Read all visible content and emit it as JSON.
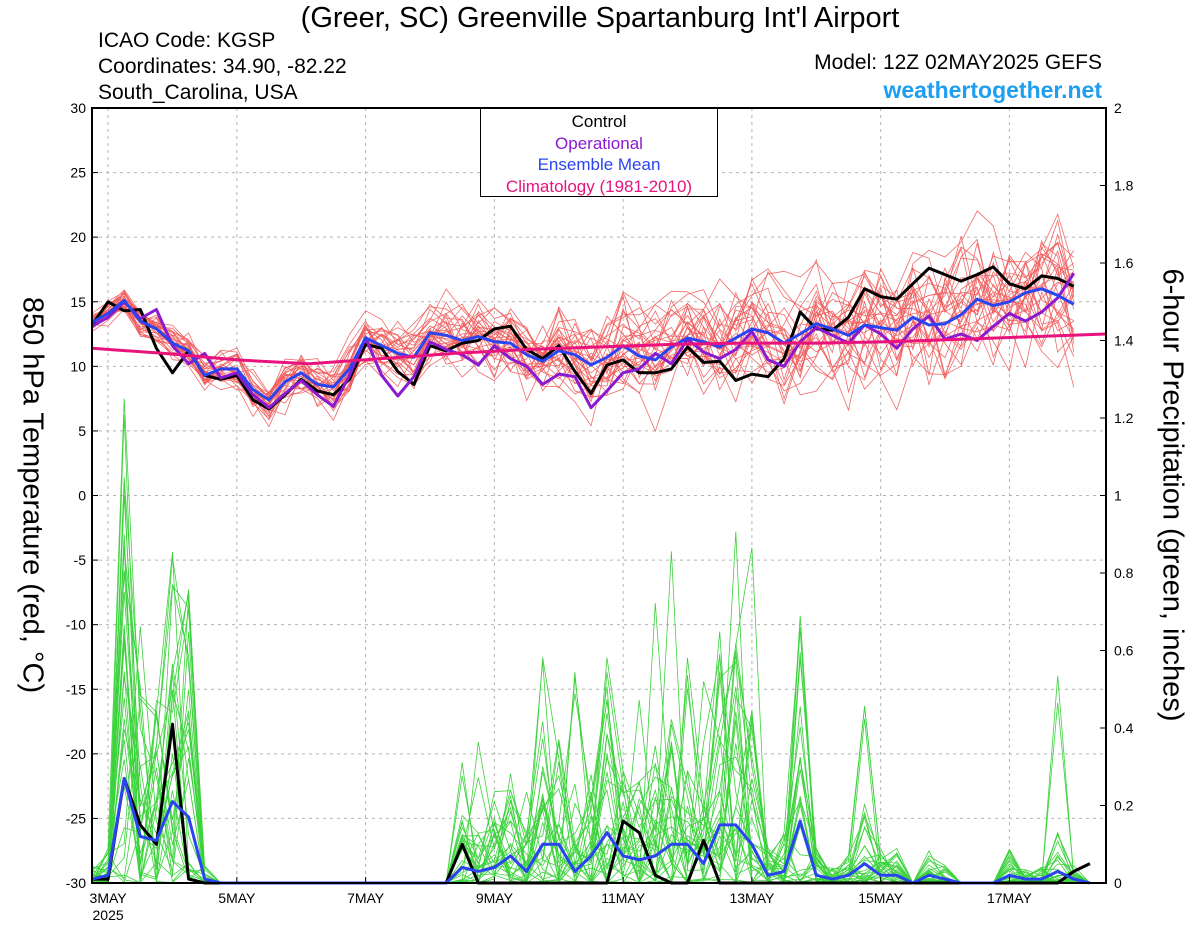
{
  "header": {
    "title": "(Greer, SC) Greenville Spartanburg Int'l Airport",
    "icao": "ICAO Code: KGSP",
    "coordinates": "Coordinates: 34.90, -82.22",
    "region": "South_Carolina, USA",
    "model": "Model: 12Z 02MAY2025 GEFS",
    "website": "weathertogether.net"
  },
  "chart_data": {
    "type": "line",
    "ylabel_left": "850 hPa Temperature (red, °C)",
    "ylabel_right": "6-hour Precipitation (green, inches)",
    "x_ticks": [
      "3MAY",
      "5MAY",
      "7MAY",
      "9MAY",
      "11MAY",
      "13MAY",
      "15MAY",
      "17MAY"
    ],
    "x_year": "2025",
    "y_left_ticks": [
      "30",
      "25",
      "20",
      "15",
      "10",
      "5",
      "0",
      "-5",
      "-10",
      "-15",
      "-20",
      "-25",
      "-30"
    ],
    "y_right_ticks": [
      "2",
      "1.8",
      "1.6",
      "1.4",
      "1.2",
      "1",
      "0.8",
      "0.6",
      "0.4",
      "0.2",
      "0"
    ],
    "ylim_left": [
      -30,
      30
    ],
    "ylim_right": [
      0,
      2
    ],
    "xlim_days": [
      0,
      15.75
    ],
    "x_start": "2025-05-02 18Z",
    "x_step_hours": 6,
    "legend": [
      {
        "label": "Control",
        "color": "#000000"
      },
      {
        "label": "Operational",
        "color": "#8a1ad0"
      },
      {
        "label": "Ensemble Mean",
        "color": "#2a44f0"
      },
      {
        "label": "Climatology (1981-2010)",
        "color": "#e8137d"
      }
    ],
    "colors": {
      "members_temp": "#f05a5a",
      "members_precip": "#3cd23c",
      "control": "#000000",
      "operational": "#8a1ad0",
      "mean": "#2a44f0",
      "climatology": "#e8137d"
    },
    "series": [
      {
        "name": "Control",
        "kind": "temp",
        "values": [
          13.2,
          15.0,
          14.3,
          14.4,
          11.4,
          9.5,
          11.2,
          9.3,
          9.0,
          9.3,
          7.4,
          6.7,
          7.8,
          9.0,
          8.1,
          7.8,
          9.0,
          11.7,
          11.4,
          9.6,
          8.6,
          11.6,
          11.2,
          11.8,
          12.0,
          12.9,
          13.1,
          11.3,
          10.6,
          11.6,
          9.6,
          7.9,
          10.1,
          10.5,
          9.5,
          9.5,
          9.8,
          11.5,
          10.3,
          10.4,
          8.9,
          9.4,
          9.2,
          10.6,
          14.2,
          12.9,
          12.8,
          13.8,
          16.0,
          15.4,
          15.2,
          16.4,
          17.6,
          17.1,
          16.6,
          17.1,
          17.7,
          16.4,
          16.0,
          17.0,
          16.8,
          16.2
        ]
      },
      {
        "name": "Operational",
        "kind": "temp",
        "values": [
          13.1,
          13.8,
          15.0,
          13.7,
          14.4,
          11.6,
          10.2,
          11.0,
          9.1,
          9.5,
          7.8,
          6.8,
          7.9,
          8.9,
          7.8,
          6.9,
          9.3,
          12.2,
          9.3,
          7.7,
          9.2,
          11.9,
          11.3,
          10.9,
          10.1,
          11.6,
          10.6,
          10.0,
          8.6,
          9.4,
          9.2,
          6.8,
          8.1,
          9.5,
          9.8,
          11.0,
          10.2,
          12.1,
          11.1,
          10.6,
          11.3,
          12.7,
          10.5,
          10.0,
          11.9,
          13.0,
          12.4,
          11.8,
          13.2,
          12.5,
          11.4,
          12.9,
          13.9,
          12.1,
          12.5,
          12.0,
          13.1,
          14.1,
          13.5,
          14.2,
          15.3,
          17.2
        ]
      },
      {
        "name": "Ensemble Mean",
        "kind": "temp",
        "values": [
          13.4,
          14.1,
          15.1,
          13.5,
          12.9,
          11.8,
          11.2,
          9.3,
          9.8,
          9.8,
          8.2,
          7.4,
          8.8,
          9.5,
          8.6,
          8.4,
          9.8,
          12.2,
          11.6,
          11.0,
          10.7,
          12.6,
          12.4,
          12.0,
          12.3,
          11.9,
          11.8,
          10.9,
          10.4,
          11.2,
          10.9,
          10.1,
          10.7,
          11.6,
          10.8,
          10.5,
          11.5,
          12.2,
          11.9,
          11.5,
          12.2,
          12.9,
          12.6,
          11.8,
          12.5,
          13.3,
          12.9,
          12.4,
          13.2,
          13.0,
          12.8,
          13.8,
          13.2,
          13.3,
          14.0,
          15.2,
          14.7,
          15.0,
          15.7,
          16.0,
          15.5,
          14.8
        ]
      },
      {
        "name": "Climatology (1981-2010)",
        "kind": "temp",
        "values": [
          11.4,
          11.0,
          10.5,
          10.2,
          10.6,
          11.0,
          11.3,
          11.5,
          11.7,
          11.8,
          11.8,
          11.9,
          12.1,
          12.3,
          12.5
        ]
      },
      {
        "name": "Control",
        "kind": "precip",
        "values": [
          0.01,
          0.01,
          0.27,
          0.15,
          0.1,
          0.41,
          0.01,
          0.0,
          0.0,
          0.0,
          0.0,
          0.0,
          0.0,
          0.0,
          0.0,
          0.0,
          0.0,
          0.0,
          0.0,
          0.0,
          0.0,
          0.0,
          0.0,
          0.1,
          0.0,
          0.0,
          0.0,
          0.0,
          0.0,
          0.0,
          0.0,
          0.0,
          0.0,
          0.16,
          0.13,
          0.02,
          0.0,
          0.0,
          0.11,
          0.0,
          0.0,
          0.0,
          0.0,
          0.0,
          0.0,
          0.0,
          0.0,
          0.0,
          0.0,
          0.0,
          0.0,
          0.0,
          0.0,
          0.0,
          0.0,
          0.0,
          0.0,
          0.0,
          0.0,
          0.0,
          0.0,
          0.03,
          0.05
        ]
      },
      {
        "name": "Ensemble Mean",
        "kind": "precip",
        "values": [
          0.01,
          0.02,
          0.27,
          0.12,
          0.11,
          0.21,
          0.17,
          0.01,
          0.0,
          0.0,
          0.0,
          0.0,
          0.0,
          0.0,
          0.0,
          0.0,
          0.0,
          0.0,
          0.0,
          0.0,
          0.0,
          0.0,
          0.0,
          0.04,
          0.03,
          0.04,
          0.07,
          0.03,
          0.1,
          0.1,
          0.03,
          0.07,
          0.13,
          0.07,
          0.06,
          0.07,
          0.1,
          0.1,
          0.05,
          0.15,
          0.15,
          0.1,
          0.02,
          0.03,
          0.16,
          0.02,
          0.01,
          0.02,
          0.05,
          0.02,
          0.02,
          0.0,
          0.02,
          0.01,
          0.0,
          0.0,
          0.0,
          0.02,
          0.01,
          0.01,
          0.03,
          0.01,
          0.0
        ]
      }
    ]
  }
}
